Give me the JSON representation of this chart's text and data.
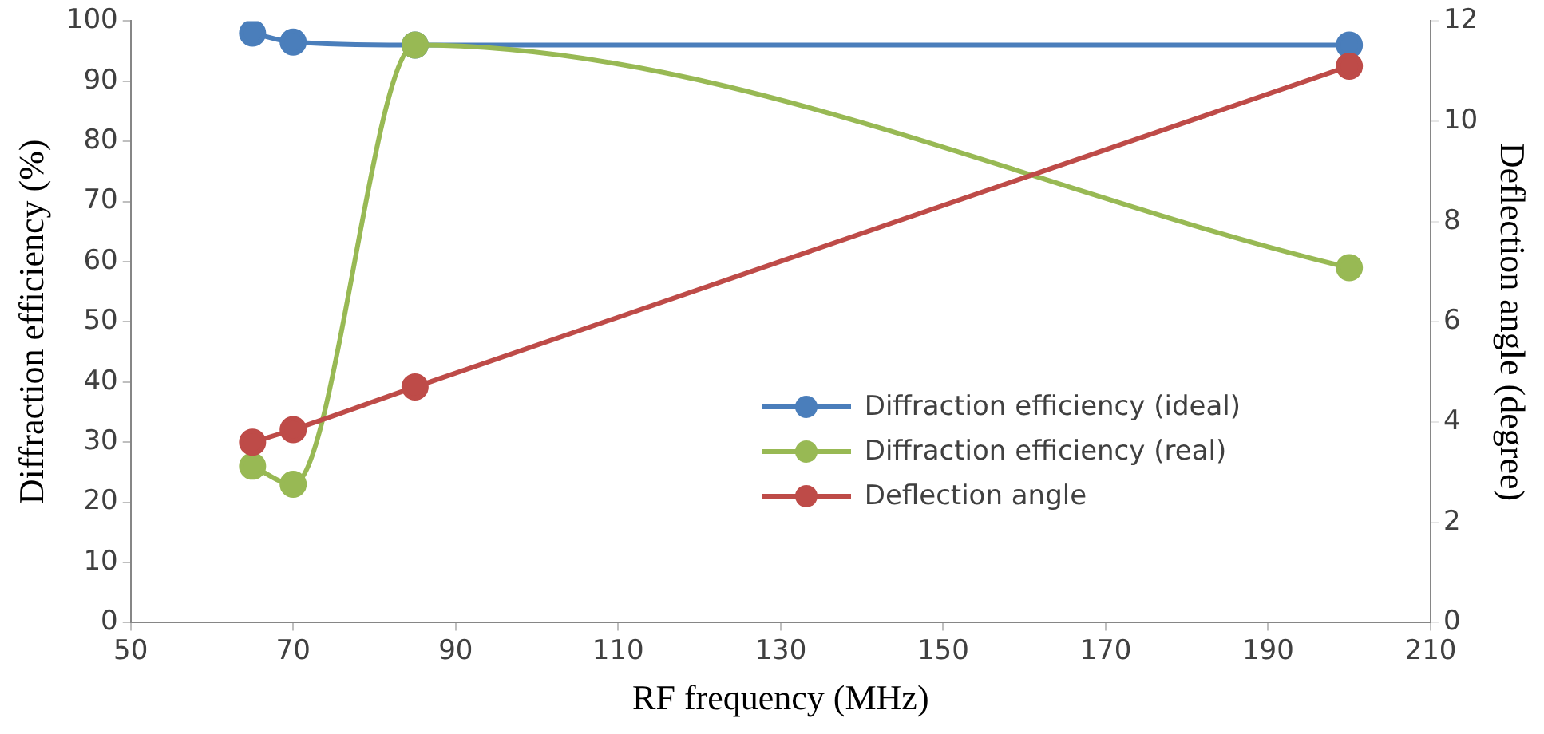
{
  "chart_data": {
    "type": "line",
    "xlabel": "RF frequency (MHz)",
    "ylabel": "Diffraction efficiency (%)",
    "y2label": "Deflection angle (degree)",
    "x": [
      65,
      70,
      85,
      200
    ],
    "series": [
      {
        "name": "Diffraction efficiency (ideal)",
        "color": "#4a7ebb",
        "values": [
          98,
          96.5,
          96,
          96
        ]
      },
      {
        "name": "Diffraction efficiency (real)",
        "color": "#98b954",
        "values": [
          26,
          23,
          96,
          59
        ]
      },
      {
        "name": "Deflection angle",
        "color": "#be4b48",
        "values": [
          3.6,
          3.85,
          4.7,
          11.1
        ],
        "axis": "y2"
      }
    ],
    "xlim": [
      50,
      210
    ],
    "xticks": [
      50,
      70,
      90,
      110,
      130,
      150,
      170,
      190,
      210
    ],
    "ylim": [
      0,
      100
    ],
    "yticks": [
      0,
      10,
      20,
      30,
      40,
      50,
      60,
      70,
      80,
      90,
      100
    ],
    "y2lim": [
      0,
      12
    ],
    "y2ticks": [
      0,
      2,
      4,
      6,
      8,
      10,
      12
    ],
    "grid": false,
    "legend": "bottom right",
    "marker": "circle",
    "line_style": "solid"
  }
}
